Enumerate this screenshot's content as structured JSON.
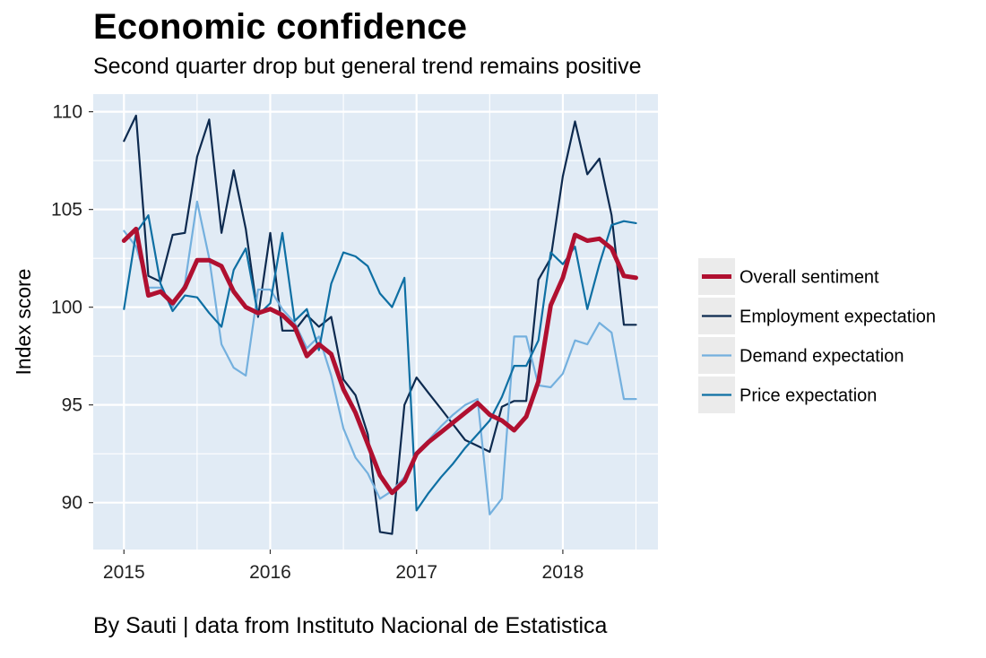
{
  "chart_data": {
    "type": "line",
    "title": "Economic confidence",
    "subtitle": "Second quarter drop but general trend remains positive",
    "caption": "By Sauti | data from Instituto Nacional de Estatistica",
    "xlabel": "",
    "ylabel": "Index score",
    "xlim": [
      2014.79,
      2018.65
    ],
    "ylim": [
      87.6,
      110.9
    ],
    "x_ticks": [
      2015,
      2016,
      2017,
      2018
    ],
    "x_tick_labels": [
      "2015",
      "2016",
      "2017",
      "2018"
    ],
    "y_ticks": [
      90,
      95,
      100,
      105,
      110
    ],
    "y_tick_labels": [
      "90",
      "95",
      "100",
      "105",
      "110"
    ],
    "grid": true,
    "legend_position": "right",
    "x": [
      2015.0,
      2015.083,
      2015.167,
      2015.25,
      2015.333,
      2015.417,
      2015.5,
      2015.583,
      2015.667,
      2015.75,
      2015.833,
      2015.917,
      2016.0,
      2016.083,
      2016.167,
      2016.25,
      2016.333,
      2016.417,
      2016.5,
      2016.583,
      2016.667,
      2016.75,
      2016.833,
      2016.917,
      2017.0,
      2017.083,
      2017.167,
      2017.25,
      2017.333,
      2017.417,
      2017.5,
      2017.583,
      2017.667,
      2017.75,
      2017.833,
      2017.917,
      2018.0,
      2018.083,
      2018.167,
      2018.25,
      2018.333,
      2018.417,
      2018.5
    ],
    "series": [
      {
        "name": "Employment expectation",
        "color": "#0d2a4f",
        "width": 2.2,
        "values": [
          108.5,
          109.8,
          101.6,
          101.3,
          103.7,
          103.8,
          107.7,
          109.6,
          103.8,
          107.0,
          104.0,
          99.5,
          103.8,
          98.8,
          98.8,
          99.6,
          99.0,
          99.5,
          96.3,
          95.5,
          93.5,
          88.5,
          88.4,
          95.0,
          96.4,
          95.6,
          94.8,
          94.0,
          93.2,
          92.9,
          92.6,
          94.9,
          95.2,
          95.2,
          101.4,
          102.5,
          106.7,
          109.5,
          106.8,
          107.6,
          104.7,
          99.1,
          99.1
        ]
      },
      {
        "name": "Demand expectation",
        "color": "#74b0de",
        "width": 2.2,
        "values": [
          103.9,
          103.1,
          101.0,
          101.0,
          100.0,
          101.2,
          105.4,
          102.5,
          98.1,
          96.9,
          96.5,
          100.9,
          100.9,
          99.9,
          99.2,
          97.9,
          98.5,
          96.5,
          93.8,
          92.3,
          91.5,
          90.2,
          90.6,
          91.3,
          92.6,
          93.2,
          93.9,
          94.5,
          95.0,
          95.3,
          89.4,
          90.2,
          98.5,
          98.5,
          96.0,
          95.9,
          96.6,
          98.3,
          98.1,
          99.2,
          98.7,
          95.3,
          95.3
        ]
      },
      {
        "name": "Price expectation",
        "color": "#0e6fa3",
        "width": 2.2,
        "values": [
          99.9,
          103.8,
          104.7,
          101.2,
          99.8,
          100.6,
          100.5,
          99.7,
          99.0,
          101.9,
          103.0,
          99.6,
          100.2,
          103.8,
          99.3,
          99.9,
          97.8,
          101.2,
          102.8,
          102.6,
          102.1,
          100.7,
          100.0,
          101.5,
          89.6,
          90.5,
          91.3,
          92.0,
          92.8,
          93.5,
          94.2,
          95.4,
          97.0,
          97.0,
          98.3,
          102.8,
          102.2,
          103.1,
          99.9,
          102.2,
          104.2,
          104.4,
          104.3
        ]
      },
      {
        "name": "Overall sentiment",
        "color": "#b01030",
        "width": 5,
        "values": [
          103.4,
          104.0,
          100.6,
          100.8,
          100.2,
          101.0,
          102.4,
          102.4,
          102.1,
          100.8,
          100.0,
          99.7,
          99.9,
          99.6,
          99.0,
          97.5,
          98.1,
          97.6,
          95.8,
          94.6,
          93.0,
          91.4,
          90.5,
          91.1,
          92.5,
          93.1,
          93.6,
          94.1,
          94.6,
          95.1,
          94.5,
          94.2,
          93.7,
          94.4,
          96.2,
          100.1,
          101.5,
          103.7,
          103.4,
          103.5,
          103.0,
          101.6,
          101.5
        ]
      }
    ],
    "legend_order": [
      "Overall sentiment",
      "Employment expectation",
      "Demand expectation",
      "Price expectation"
    ]
  }
}
